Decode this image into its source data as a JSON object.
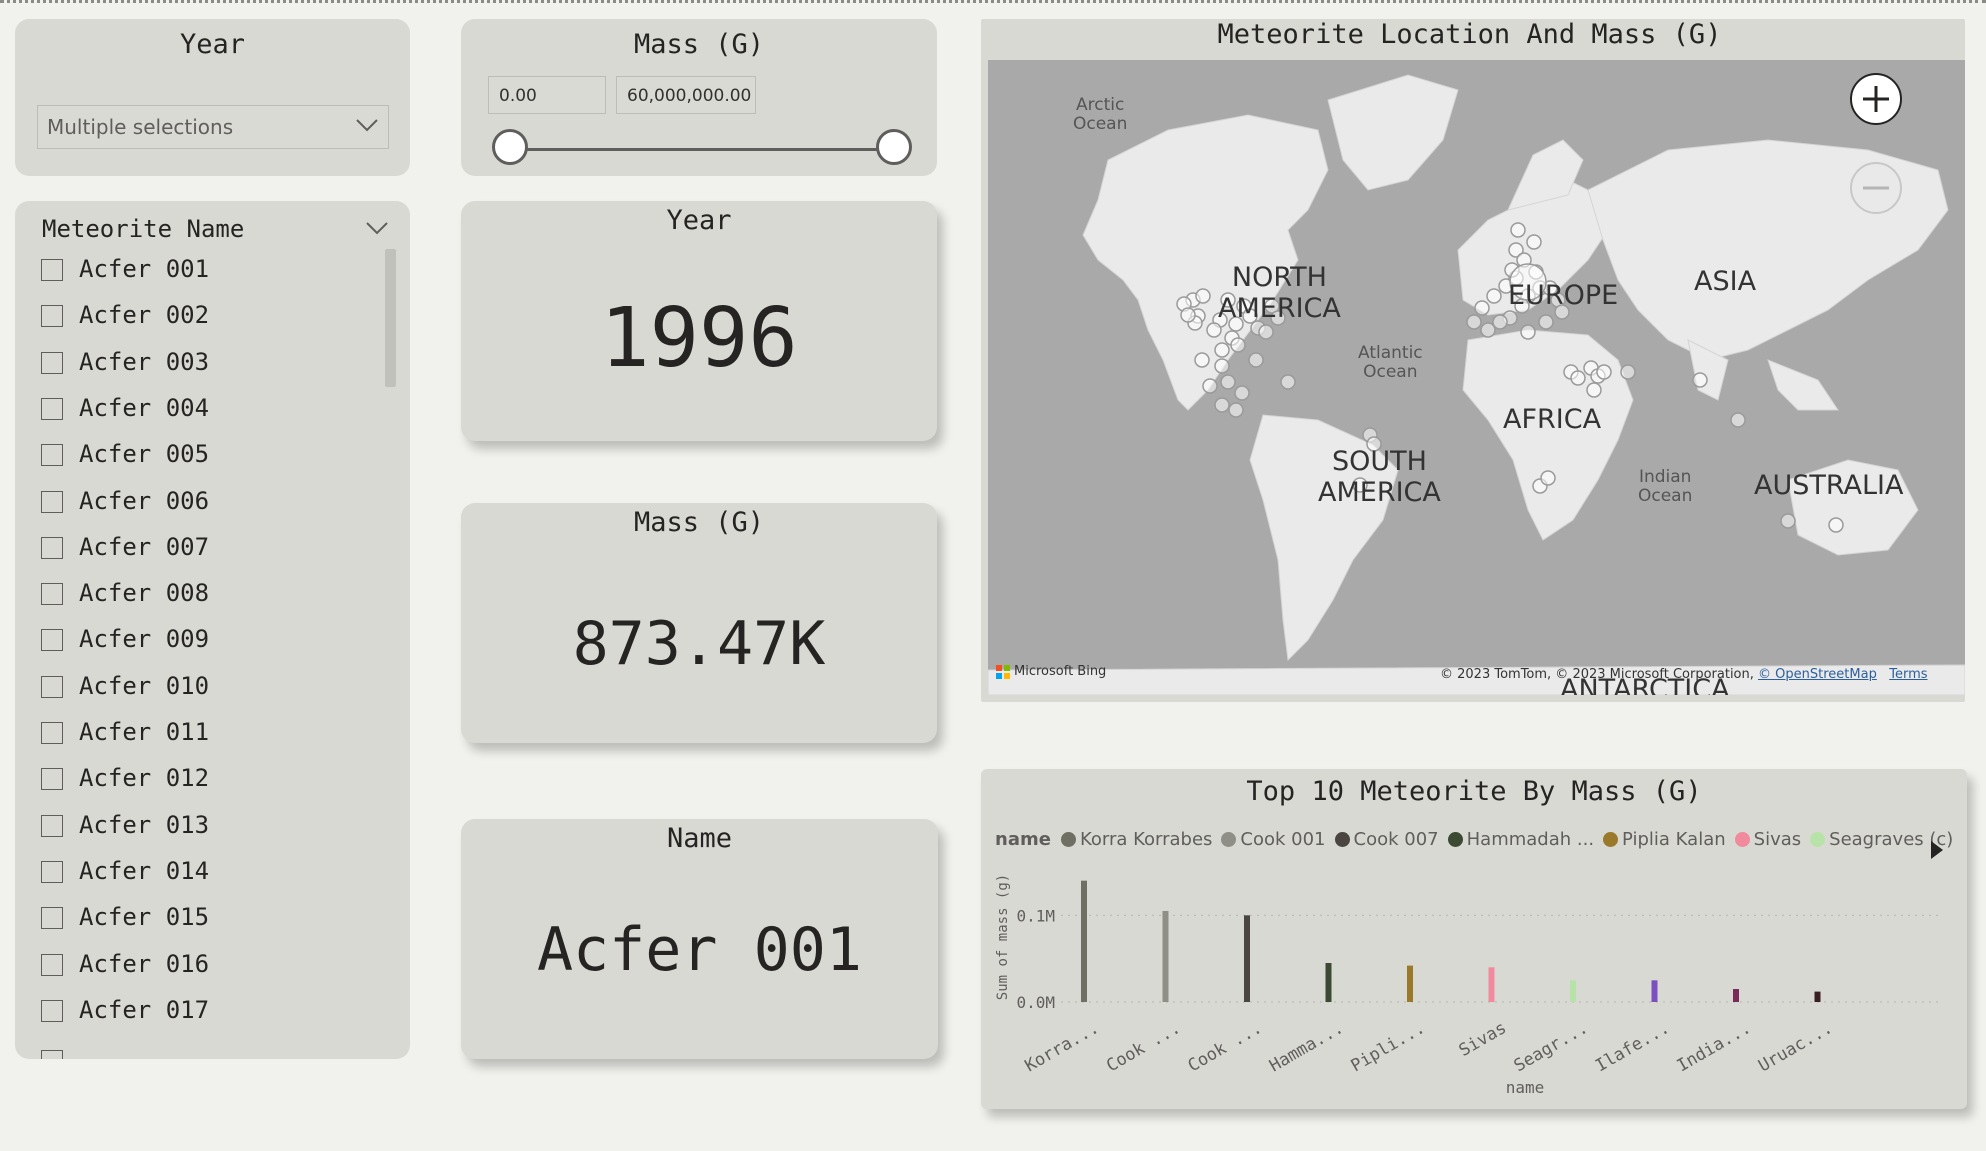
{
  "year_slicer": {
    "title": "Year",
    "selection": "Multiple selections"
  },
  "mass_slicer": {
    "title": "Mass (G)",
    "min_value": "0.00",
    "max_value": "60,000,000.00"
  },
  "name_slicer": {
    "title": "Meteorite Name",
    "items": [
      "Acfer 001",
      "Acfer 002",
      "Acfer 003",
      "Acfer 004",
      "Acfer 005",
      "Acfer 006",
      "Acfer 007",
      "Acfer 008",
      "Acfer 009",
      "Acfer 010",
      "Acfer 011",
      "Acfer 012",
      "Acfer 013",
      "Acfer 014",
      "Acfer 015",
      "Acfer 016",
      "Acfer 017"
    ]
  },
  "kpi_year": {
    "title": "Year",
    "value": "1996"
  },
  "kpi_mass": {
    "title": "Mass (G)",
    "value": "873.47K"
  },
  "kpi_name": {
    "title": "Name",
    "value": "Acfer 001"
  },
  "map": {
    "title": "Meteorite Location And Mass (G)",
    "labels": {
      "arctic": "Arctic\nOcean",
      "north_america": "NORTH\nAMERICA",
      "europe": "EUROPE",
      "asia": "ASIA",
      "atlantic": "Atlantic\nOcean",
      "africa": "AFRICA",
      "south_america": "SOUTH\nAMERICA",
      "indian": "Indian\nOcean",
      "australia": "AUSTRALIA",
      "antarctica": "ANTARCTICA"
    },
    "provider": "Microsoft Bing",
    "attribution": "© 2023 TomTom, © 2023 Microsoft Corporation,",
    "osm_link": "© OpenStreetMap",
    "terms_link": "Terms",
    "zoom_in_icon": "plus-icon",
    "zoom_out_icon": "minus-icon"
  },
  "bar_chart": {
    "title": "Top 10 Meteorite By Mass (G)",
    "legend_title": "name",
    "legend_items": [
      {
        "label": "Korra Korrabes",
        "color": "#6f6f64"
      },
      {
        "label": "Cook 001",
        "color": "#8f8f88"
      },
      {
        "label": "Cook 007",
        "color": "#4a4540"
      },
      {
        "label": "Hammadah ...",
        "color": "#3c4a34"
      },
      {
        "label": "Piplia Kalan",
        "color": "#9a7a2a"
      },
      {
        "label": "Sivas",
        "color": "#f08a9c"
      },
      {
        "label": "Seagraves (c)",
        "color": "#b8e3a8"
      }
    ],
    "ylabel": "Sum of mass (g)",
    "xlabel": "name",
    "next_icon": "triangle-right-icon"
  },
  "chart_data": {
    "type": "bar",
    "title": "Top 10 Meteorite By Mass (G)",
    "xlabel": "name",
    "ylabel": "Sum of mass (g)",
    "categories": [
      "Korra...",
      "Cook ...",
      "Cook ...",
      "Hamma...",
      "Pipli...",
      "Sivas",
      "Seagr...",
      "Ilafe...",
      "India...",
      "Uruac..."
    ],
    "values": [
      140000,
      105000,
      100000,
      45000,
      42000,
      40000,
      25000,
      25000,
      15000,
      12000
    ],
    "colors": [
      "#6f6f64",
      "#8f8f88",
      "#4a4540",
      "#3c4a34",
      "#9a7a2a",
      "#f08a9c",
      "#b8e3a8",
      "#7a4fc0",
      "#7a2a5a",
      "#3a2020"
    ],
    "yticks": [
      "0.0M",
      "0.1M"
    ],
    "ylim": [
      0,
      150000
    ],
    "grid": true,
    "legend": "top-left"
  }
}
